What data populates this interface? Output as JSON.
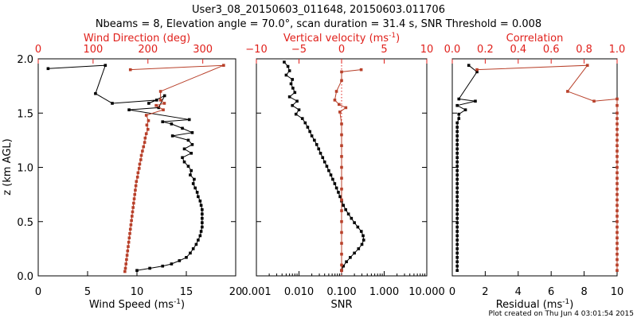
{
  "title_line1": "User3_08_20150603_011648, 20150603.011706",
  "title_line2": "Nbeams = 8, Elevation angle = 70.0°, scan duration = 31.4 s, SNR Threshold = 0.008",
  "footer": "Plot created on Thu Jun  4 03:01:54 2015",
  "colors": {
    "black": "#000000",
    "red": "#e0201b",
    "brown": "#b8402a"
  },
  "chart_data": [
    {
      "type": "line",
      "panel": "wind",
      "ylabel": "z (km AGL)",
      "ylim": [
        0,
        2.0
      ],
      "yticks": [
        "0.0",
        "0.5",
        "1.0",
        "1.5",
        "2.0"
      ],
      "xlabel": "Wind Speed (ms",
      "xlabel_sup": "-1",
      "xlabel_end": ")",
      "xlim": [
        0,
        20
      ],
      "xticks": [
        "0",
        "5",
        "10",
        "15",
        "20"
      ],
      "top_xlabel": "Wind Direction (deg)",
      "top_xlim": [
        0,
        360
      ],
      "top_xticks": [
        "0",
        "100",
        "200",
        "300"
      ],
      "series": [
        {
          "name": "Wind Speed",
          "color": "#000000",
          "points": [
            [
              1.0,
              1.91
            ],
            [
              6.8,
              1.94
            ],
            [
              5.8,
              1.68
            ],
            [
              7.5,
              1.59
            ],
            [
              12.0,
              1.62
            ],
            [
              11.2,
              1.59
            ],
            [
              12.8,
              1.66
            ],
            [
              12.2,
              1.55
            ],
            [
              9.2,
              1.53
            ],
            [
              15.3,
              1.44
            ],
            [
              12.6,
              1.42
            ],
            [
              13.5,
              1.4
            ],
            [
              14.6,
              1.36
            ],
            [
              15.6,
              1.32
            ],
            [
              13.6,
              1.29
            ],
            [
              15.2,
              1.25
            ],
            [
              15.6,
              1.21
            ],
            [
              14.8,
              1.17
            ],
            [
              15.5,
              1.13
            ],
            [
              14.6,
              1.09
            ],
            [
              14.8,
              1.05
            ],
            [
              15.2,
              1.01
            ],
            [
              15.5,
              0.97
            ],
            [
              15.4,
              0.93
            ],
            [
              15.8,
              0.89
            ],
            [
              15.7,
              0.85
            ],
            [
              15.9,
              0.81
            ],
            [
              16.1,
              0.77
            ],
            [
              16.2,
              0.73
            ],
            [
              16.4,
              0.69
            ],
            [
              16.5,
              0.65
            ],
            [
              16.6,
              0.61
            ],
            [
              16.6,
              0.57
            ],
            [
              16.6,
              0.53
            ],
            [
              16.6,
              0.49
            ],
            [
              16.6,
              0.45
            ],
            [
              16.5,
              0.41
            ],
            [
              16.4,
              0.37
            ],
            [
              16.2,
              0.33
            ],
            [
              16.0,
              0.29
            ],
            [
              15.7,
              0.25
            ],
            [
              15.4,
              0.21
            ],
            [
              15.0,
              0.17
            ],
            [
              14.3,
              0.14
            ],
            [
              13.5,
              0.11
            ],
            [
              12.6,
              0.09
            ],
            [
              11.3,
              0.07
            ],
            [
              10.0,
              0.05
            ]
          ]
        },
        {
          "name": "Wind Direction",
          "color": "#b8402a",
          "axis": "top",
          "points": [
            [
              168,
              1.9
            ],
            [
              338,
              1.94
            ],
            [
              223,
              1.7
            ],
            [
              223,
              1.62
            ],
            [
              230,
              1.59
            ],
            [
              215,
              1.57
            ],
            [
              228,
              1.53
            ],
            [
              197,
              1.48
            ],
            [
              201,
              1.43
            ],
            [
              198,
              1.39
            ],
            [
              200,
              1.35
            ],
            [
              197,
              1.31
            ],
            [
              195,
              1.27
            ],
            [
              194,
              1.23
            ],
            [
              192,
              1.19
            ],
            [
              190,
              1.15
            ],
            [
              188,
              1.11
            ],
            [
              187,
              1.07
            ],
            [
              185,
              1.03
            ],
            [
              184,
              0.99
            ],
            [
              182,
              0.95
            ],
            [
              181,
              0.91
            ],
            [
              179,
              0.87
            ],
            [
              178,
              0.83
            ],
            [
              177,
              0.79
            ],
            [
              176,
              0.75
            ],
            [
              175,
              0.71
            ],
            [
              174,
              0.67
            ],
            [
              173,
              0.63
            ],
            [
              172,
              0.59
            ],
            [
              171,
              0.55
            ],
            [
              170,
              0.51
            ],
            [
              169,
              0.47
            ],
            [
              168,
              0.43
            ],
            [
              167,
              0.39
            ],
            [
              166,
              0.35
            ],
            [
              165,
              0.31
            ],
            [
              164,
              0.27
            ],
            [
              163,
              0.23
            ],
            [
              162,
              0.19
            ],
            [
              161,
              0.15
            ],
            [
              160,
              0.11
            ],
            [
              159,
              0.07
            ],
            [
              158,
              0.04
            ]
          ]
        }
      ]
    },
    {
      "type": "line",
      "panel": "snr",
      "xlabel": "SNR",
      "xscale": "log",
      "xlim": [
        0.001,
        10.0
      ],
      "xticks": [
        "0.001",
        "0.010",
        "0.100",
        "1.000",
        "10.000"
      ],
      "top_xlabel": "Vertical velocity (ms",
      "top_xlabel_sup": "-1",
      "top_xlabel_end": ")",
      "top_xlim": [
        -10,
        10
      ],
      "top_xticks": [
        "−10",
        "−5",
        "0",
        "5",
        "10"
      ],
      "threshold": 0.1,
      "series": [
        {
          "name": "SNR",
          "color": "#000000",
          "points": [
            [
              0.0045,
              1.97
            ],
            [
              0.0055,
              1.93
            ],
            [
              0.006,
              1.89
            ],
            [
              0.005,
              1.85
            ],
            [
              0.007,
              1.81
            ],
            [
              0.0065,
              1.77
            ],
            [
              0.0072,
              1.73
            ],
            [
              0.008,
              1.69
            ],
            [
              0.006,
              1.65
            ],
            [
              0.009,
              1.61
            ],
            [
              0.007,
              1.57
            ],
            [
              0.01,
              1.53
            ],
            [
              0.0085,
              1.49
            ],
            [
              0.012,
              1.45
            ],
            [
              0.014,
              1.41
            ],
            [
              0.016,
              1.37
            ],
            [
              0.018,
              1.33
            ],
            [
              0.02,
              1.29
            ],
            [
              0.023,
              1.25
            ],
            [
              0.026,
              1.21
            ],
            [
              0.029,
              1.17
            ],
            [
              0.032,
              1.13
            ],
            [
              0.036,
              1.09
            ],
            [
              0.04,
              1.05
            ],
            [
              0.045,
              1.01
            ],
            [
              0.05,
              0.97
            ],
            [
              0.056,
              0.93
            ],
            [
              0.062,
              0.89
            ],
            [
              0.069,
              0.85
            ],
            [
              0.076,
              0.81
            ],
            [
              0.084,
              0.77
            ],
            [
              0.092,
              0.73
            ],
            [
              0.1,
              0.69
            ],
            [
              0.11,
              0.65
            ],
            [
              0.125,
              0.61
            ],
            [
              0.145,
              0.57
            ],
            [
              0.17,
              0.53
            ],
            [
              0.2,
              0.49
            ],
            [
              0.24,
              0.45
            ],
            [
              0.29,
              0.41
            ],
            [
              0.32,
              0.37
            ],
            [
              0.33,
              0.33
            ],
            [
              0.3,
              0.29
            ],
            [
              0.25,
              0.25
            ],
            [
              0.2,
              0.21
            ],
            [
              0.16,
              0.17
            ],
            [
              0.13,
              0.13
            ],
            [
              0.11,
              0.09
            ],
            [
              0.1,
              0.05
            ]
          ]
        },
        {
          "name": "Vertical velocity",
          "color": "#b8402a",
          "axis": "top",
          "points": [
            [
              2.3,
              1.9
            ],
            [
              0.0,
              1.88
            ],
            [
              0.0,
              1.8
            ],
            [
              -0.6,
              1.7
            ],
            [
              -0.8,
              1.62
            ],
            [
              -0.3,
              1.58
            ],
            [
              0.5,
              1.55
            ],
            [
              -0.2,
              1.51
            ],
            [
              0.0,
              1.4
            ],
            [
              0.0,
              1.3
            ],
            [
              0.0,
              1.2
            ],
            [
              0.0,
              1.1
            ],
            [
              0.0,
              1.0
            ],
            [
              0.0,
              0.9
            ],
            [
              0.0,
              0.8
            ],
            [
              0.0,
              0.7
            ],
            [
              0.0,
              0.6
            ],
            [
              0.0,
              0.5
            ],
            [
              0.0,
              0.4
            ],
            [
              0.0,
              0.3
            ],
            [
              0.0,
              0.2
            ],
            [
              0.0,
              0.1
            ],
            [
              0.0,
              0.05
            ]
          ]
        }
      ]
    },
    {
      "type": "line",
      "panel": "residual",
      "xlabel": "Residual (ms",
      "xlabel_sup": "-1",
      "xlabel_end": ")",
      "xlim": [
        0,
        10
      ],
      "xticks": [
        "0",
        "2",
        "4",
        "6",
        "8",
        "10"
      ],
      "top_xlabel": "Correlation",
      "top_xlim": [
        0.0,
        1.0
      ],
      "top_xticks": [
        "0.0",
        "0.2",
        "0.4",
        "0.6",
        "0.8",
        "1.0"
      ],
      "series": [
        {
          "name": "Residual",
          "color": "#000000",
          "points": [
            [
              1.0,
              1.94
            ],
            [
              1.5,
              1.88
            ],
            [
              0.4,
              1.63
            ],
            [
              1.4,
              1.61
            ],
            [
              0.3,
              1.57
            ],
            [
              0.8,
              1.53
            ],
            [
              0.4,
              1.49
            ],
            [
              0.4,
              1.45
            ],
            [
              0.3,
              1.41
            ],
            [
              0.3,
              1.37
            ],
            [
              0.3,
              1.33
            ],
            [
              0.3,
              1.29
            ],
            [
              0.3,
              1.25
            ],
            [
              0.3,
              1.21
            ],
            [
              0.3,
              1.17
            ],
            [
              0.3,
              1.13
            ],
            [
              0.3,
              1.09
            ],
            [
              0.3,
              1.05
            ],
            [
              0.3,
              1.01
            ],
            [
              0.3,
              0.97
            ],
            [
              0.3,
              0.93
            ],
            [
              0.3,
              0.89
            ],
            [
              0.3,
              0.85
            ],
            [
              0.3,
              0.81
            ],
            [
              0.3,
              0.77
            ],
            [
              0.3,
              0.73
            ],
            [
              0.3,
              0.69
            ],
            [
              0.3,
              0.65
            ],
            [
              0.3,
              0.61
            ],
            [
              0.3,
              0.57
            ],
            [
              0.3,
              0.53
            ],
            [
              0.3,
              0.49
            ],
            [
              0.3,
              0.45
            ],
            [
              0.3,
              0.41
            ],
            [
              0.3,
              0.37
            ],
            [
              0.3,
              0.33
            ],
            [
              0.3,
              0.29
            ],
            [
              0.3,
              0.25
            ],
            [
              0.3,
              0.21
            ],
            [
              0.3,
              0.17
            ],
            [
              0.3,
              0.13
            ],
            [
              0.3,
              0.09
            ],
            [
              0.3,
              0.05
            ]
          ]
        },
        {
          "name": "Correlation",
          "color": "#b8402a",
          "axis": "top",
          "points": [
            [
              0.15,
              1.9
            ],
            [
              0.82,
              1.94
            ],
            [
              0.7,
              1.7
            ],
            [
              0.86,
              1.61
            ],
            [
              1.0,
              1.63
            ],
            [
              1.0,
              1.57
            ],
            [
              1.0,
              1.5
            ],
            [
              1.0,
              1.45
            ],
            [
              1.0,
              1.4
            ],
            [
              1.0,
              1.35
            ],
            [
              1.0,
              1.3
            ],
            [
              1.0,
              1.25
            ],
            [
              1.0,
              1.2
            ],
            [
              1.0,
              1.15
            ],
            [
              1.0,
              1.1
            ],
            [
              1.0,
              1.05
            ],
            [
              1.0,
              1.0
            ],
            [
              1.0,
              0.95
            ],
            [
              1.0,
              0.9
            ],
            [
              1.0,
              0.85
            ],
            [
              1.0,
              0.8
            ],
            [
              1.0,
              0.75
            ],
            [
              1.0,
              0.7
            ],
            [
              1.0,
              0.65
            ],
            [
              1.0,
              0.6
            ],
            [
              1.0,
              0.55
            ],
            [
              1.0,
              0.5
            ],
            [
              1.0,
              0.45
            ],
            [
              1.0,
              0.4
            ],
            [
              1.0,
              0.35
            ],
            [
              1.0,
              0.3
            ],
            [
              1.0,
              0.25
            ],
            [
              1.0,
              0.2
            ],
            [
              1.0,
              0.15
            ],
            [
              1.0,
              0.1
            ],
            [
              1.0,
              0.05
            ]
          ]
        }
      ]
    }
  ]
}
